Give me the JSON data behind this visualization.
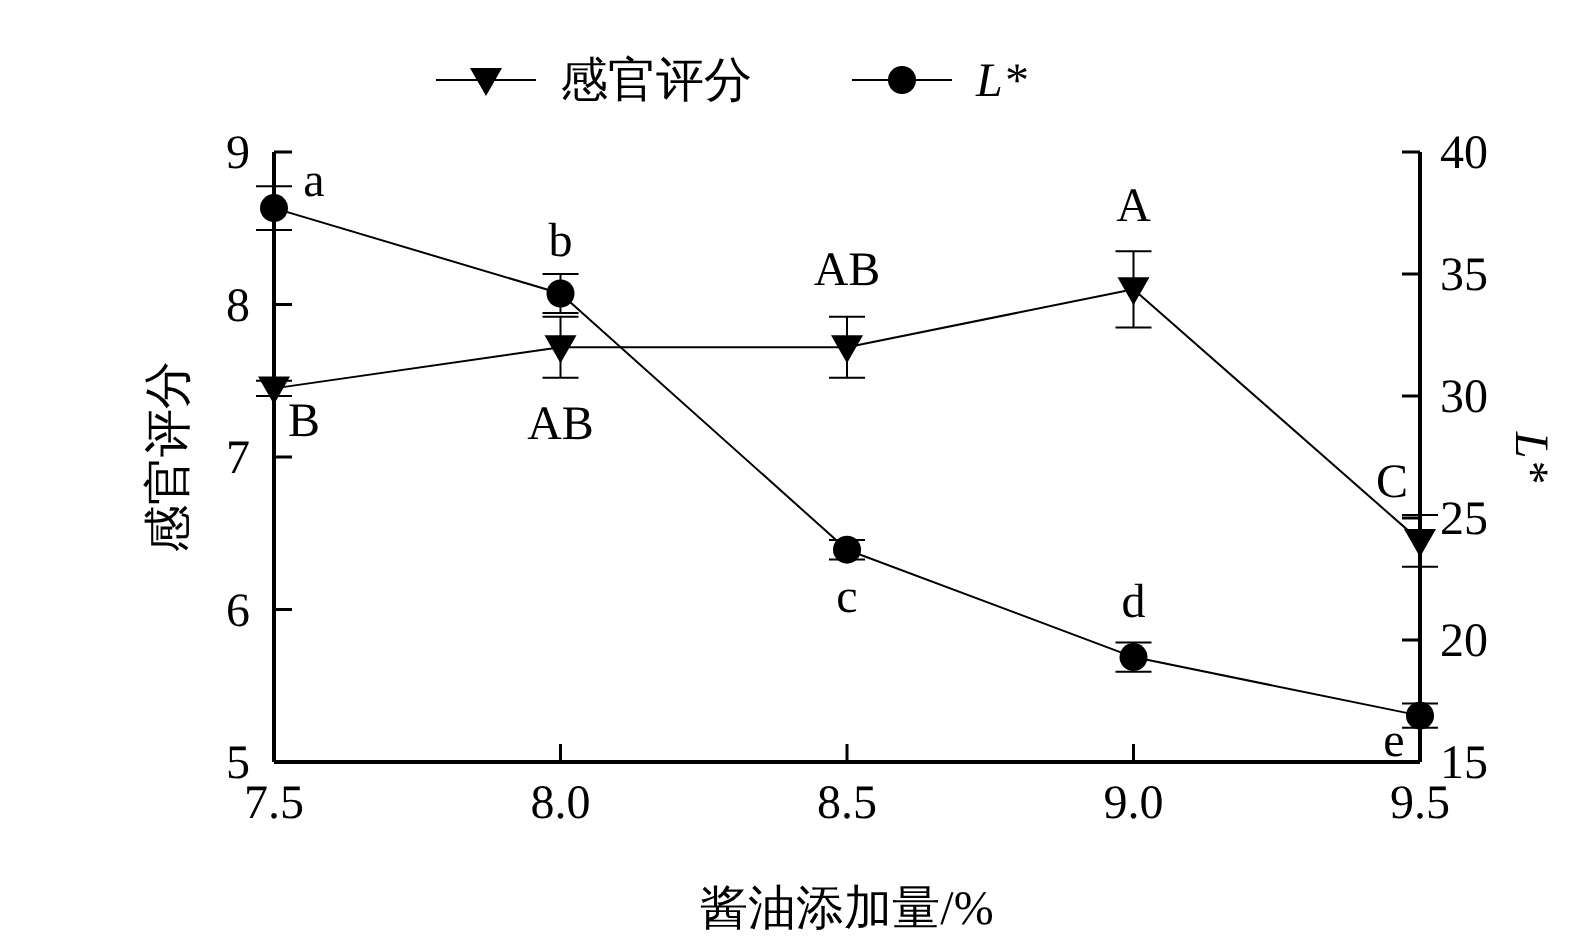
{
  "chart_data": {
    "type": "line",
    "xlabel": "酱油添加量/%",
    "ylabel": "感官评分",
    "y2label": "L*",
    "x": [
      7.5,
      8.0,
      8.5,
      9.0,
      9.5
    ],
    "xlim": [
      7.5,
      9.5
    ],
    "xticks": [
      {
        "value": 7.5,
        "label": "7.5"
      },
      {
        "value": 8.0,
        "label": "8.0"
      },
      {
        "value": 8.5,
        "label": "8.5"
      },
      {
        "value": 9.0,
        "label": "9.0"
      },
      {
        "value": 9.5,
        "label": "9.5"
      }
    ],
    "ylim": [
      5,
      9
    ],
    "yticks": [
      5,
      6,
      7,
      8,
      9
    ],
    "y2lim": [
      15,
      40
    ],
    "y2ticks": [
      15,
      20,
      25,
      30,
      35,
      40
    ],
    "series": [
      {
        "name": "感官评分",
        "color": "#000000",
        "marker": "triangle",
        "values": [
          7.45,
          7.72,
          7.72,
          8.1,
          6.45
        ],
        "errors": [
          0.05,
          0.2,
          0.2,
          0.25,
          0.17
        ]
      },
      {
        "name": "L*",
        "color": "#000000",
        "marker": "circle",
        "axis": "y2",
        "values": [
          37.7,
          34.2,
          23.7,
          19.3,
          16.9
        ],
        "errors": [
          0.9,
          0.8,
          0.4,
          0.6,
          0.5
        ]
      }
    ],
    "annotations": [
      "B",
      "a",
      "AB",
      "b",
      "AB",
      "c",
      "A",
      "d",
      "C",
      "e"
    ],
    "legend": "top",
    "line_style": "solid",
    "grid": false
  }
}
